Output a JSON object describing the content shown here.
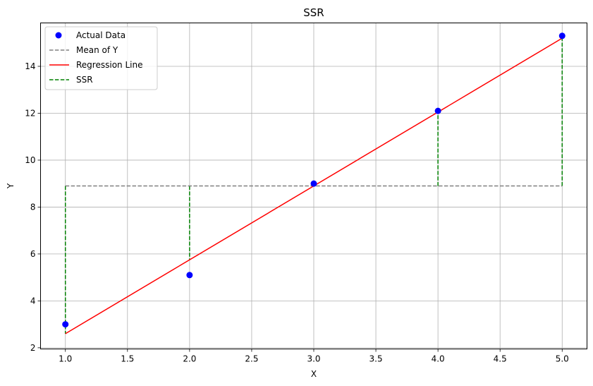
{
  "chart_data": {
    "type": "scatter",
    "title": "SSR",
    "xlabel": "X",
    "ylabel": "Y",
    "xlim": [
      0.8,
      5.2
    ],
    "ylim": [
      1.95,
      15.85
    ],
    "xticks": [
      1.0,
      1.5,
      2.0,
      2.5,
      3.0,
      3.5,
      4.0,
      4.5,
      5.0
    ],
    "xtick_labels": [
      "1.0",
      "1.5",
      "2.0",
      "2.5",
      "3.0",
      "3.5",
      "4.0",
      "4.5",
      "5.0"
    ],
    "yticks": [
      2,
      4,
      6,
      8,
      10,
      12,
      14
    ],
    "ytick_labels": [
      "2",
      "4",
      "6",
      "8",
      "10",
      "12",
      "14"
    ],
    "grid": true,
    "legend_position": "top-left",
    "series": [
      {
        "name": "Actual Data",
        "kind": "scatter",
        "color": "#0000ff",
        "x": [
          1,
          2,
          3,
          4,
          5
        ],
        "y": [
          3.0,
          5.1,
          9.0,
          12.1,
          15.3
        ]
      },
      {
        "name": "Mean of Y",
        "kind": "hline",
        "color": "#808080",
        "style": "dashed",
        "x": [
          1,
          5
        ],
        "y": 8.9
      },
      {
        "name": "Regression Line",
        "kind": "line",
        "color": "#ff0000",
        "x": [
          1,
          5
        ],
        "y": [
          2.6,
          15.2
        ]
      },
      {
        "name": "SSR",
        "kind": "segments",
        "color": "#008000",
        "style": "dashed",
        "x": [
          1,
          2,
          3,
          4,
          5
        ],
        "from": [
          8.9,
          8.9,
          8.9,
          8.9,
          8.9
        ],
        "to": [
          2.6,
          5.75,
          8.9,
          12.05,
          15.2
        ]
      }
    ]
  }
}
